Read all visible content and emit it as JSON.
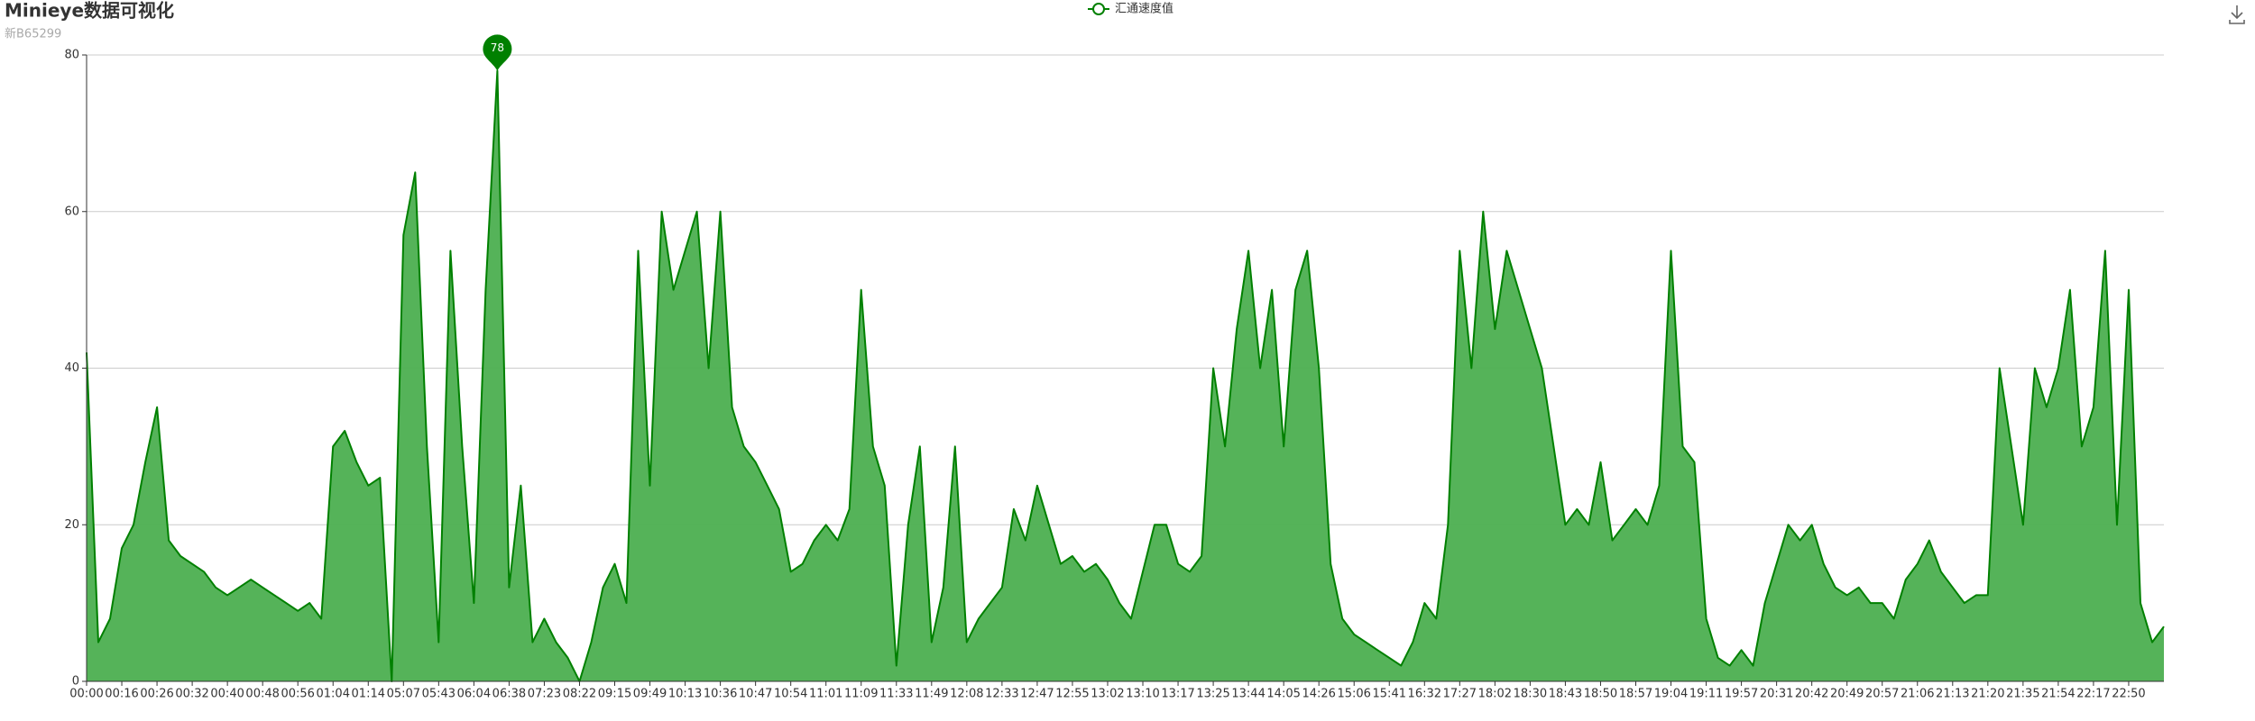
{
  "chart_data": {
    "type": "line",
    "title": "Minieye数据可视化",
    "subtitle": "新B65299",
    "categories": [
      "00:00",
      null,
      null,
      "00:16",
      null,
      null,
      "00:26",
      null,
      null,
      "00:32",
      null,
      null,
      "00:40",
      null,
      null,
      "00:48",
      null,
      null,
      "00:56",
      null,
      null,
      "01:04",
      null,
      null,
      "01:14",
      null,
      null,
      "05:07",
      null,
      null,
      "05:43",
      null,
      null,
      "06:04",
      null,
      null,
      "06:38",
      null,
      null,
      "07:23",
      null,
      null,
      "08:22",
      null,
      null,
      "09:15",
      null,
      null,
      "09:49",
      null,
      null,
      "10:13",
      null,
      null,
      "10:36",
      null,
      null,
      "10:47",
      null,
      null,
      "10:54",
      null,
      null,
      "11:01",
      null,
      null,
      "11:09",
      null,
      null,
      "11:33",
      null,
      null,
      "11:49",
      null,
      null,
      "12:08",
      null,
      null,
      "12:33",
      null,
      null,
      "12:47",
      null,
      null,
      "12:55",
      null,
      null,
      "13:02",
      null,
      null,
      "13:10",
      null,
      null,
      "13:17",
      null,
      null,
      "13:25",
      null,
      null,
      "13:44",
      null,
      null,
      "14:05",
      null,
      null,
      "14:26",
      null,
      null,
      "15:06",
      null,
      null,
      "15:41",
      null,
      null,
      "16:32",
      null,
      null,
      "17:27",
      null,
      null,
      "18:02",
      null,
      null,
      "18:30",
      null,
      null,
      "18:43",
      null,
      null,
      "18:50",
      null,
      null,
      "18:57",
      null,
      null,
      "19:04",
      null,
      null,
      "19:11",
      null,
      null,
      "19:57",
      null,
      null,
      "20:31",
      null,
      null,
      "20:42",
      null,
      null,
      "20:49",
      null,
      null,
      "20:57",
      null,
      null,
      "21:06",
      null,
      null,
      "21:13",
      null,
      null,
      "21:20",
      null,
      null,
      "21:35",
      null,
      null,
      "21:54",
      null,
      null,
      "22:17",
      null,
      null,
      "22:50",
      null,
      null,
      null
    ],
    "series": [
      {
        "name": "汇通速度值",
        "color": "#008000",
        "area_color": "#4caf50",
        "values": [
          42,
          5,
          8,
          17,
          20,
          28,
          35,
          18,
          16,
          15,
          14,
          12,
          11,
          12,
          13,
          12,
          11,
          10,
          9,
          10,
          8,
          30,
          32,
          28,
          25,
          26,
          0,
          57,
          65,
          30,
          5,
          55,
          30,
          10,
          50,
          78,
          12,
          25,
          5,
          8,
          5,
          3,
          0,
          5,
          12,
          15,
          10,
          55,
          25,
          60,
          50,
          55,
          60,
          40,
          60,
          35,
          30,
          28,
          25,
          22,
          14,
          15,
          18,
          20,
          18,
          22,
          50,
          30,
          25,
          2,
          20,
          30,
          5,
          12,
          30,
          5,
          8,
          10,
          12,
          22,
          18,
          25,
          20,
          15,
          16,
          14,
          15,
          13,
          10,
          8,
          14,
          20,
          20,
          15,
          14,
          16,
          40,
          30,
          45,
          55,
          40,
          50,
          30,
          50,
          55,
          40,
          15,
          8,
          6,
          5,
          4,
          3,
          2,
          5,
          10,
          8,
          20,
          55,
          40,
          60,
          45,
          55,
          50,
          45,
          40,
          30,
          20,
          22,
          20,
          28,
          18,
          20,
          22,
          20,
          25,
          55,
          30,
          28,
          8,
          3,
          2,
          4,
          2,
          10,
          15,
          20,
          18,
          20,
          15,
          12,
          11,
          12,
          10,
          10,
          8,
          13,
          15,
          18,
          14,
          12,
          10,
          11,
          11,
          40,
          30,
          20,
          40,
          35,
          40,
          50,
          30,
          35,
          55,
          20,
          50,
          10,
          5,
          7
        ]
      }
    ],
    "ylim": [
      0,
      80
    ],
    "yticks": [
      0,
      20,
      40,
      60,
      80
    ],
    "grid": true,
    "legend": "top"
  }
}
